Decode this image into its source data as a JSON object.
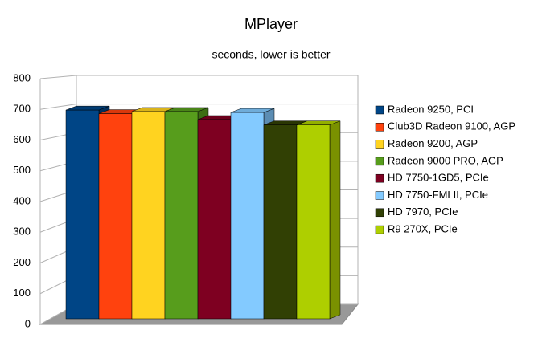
{
  "chart_data": {
    "type": "bar",
    "title": "MPlayer",
    "subtitle": "seconds, lower is better",
    "categories": [
      null
    ],
    "series": [
      {
        "name": "Radeon 9250, PCI",
        "color": "#004586",
        "values": [
          700
        ]
      },
      {
        "name": "Club3D Radeon 9100, AGP",
        "color": "#ff420e",
        "values": [
          688
        ]
      },
      {
        "name": "Radeon 9200, AGP",
        "color": "#ffd320",
        "values": [
          695
        ]
      },
      {
        "name": "Radeon 9000 PRO, AGP",
        "color": "#579d1c",
        "values": [
          695
        ]
      },
      {
        "name": "HD 7750-1GD5, PCIe",
        "color": "#7e0021",
        "values": [
          668
        ]
      },
      {
        "name": "HD 7750-FMLII, PCIe",
        "color": "#83caff",
        "values": [
          692
        ]
      },
      {
        "name": "HD 7970, PCIe",
        "color": "#314004",
        "values": [
          650
        ]
      },
      {
        "name": "R9 270X, PCIe",
        "color": "#aecf00",
        "values": [
          650
        ]
      }
    ],
    "ylim": [
      0,
      800
    ],
    "yticks": [
      0,
      100,
      200,
      300,
      400,
      500,
      600,
      700,
      800
    ],
    "grid": true,
    "legend": "right"
  }
}
